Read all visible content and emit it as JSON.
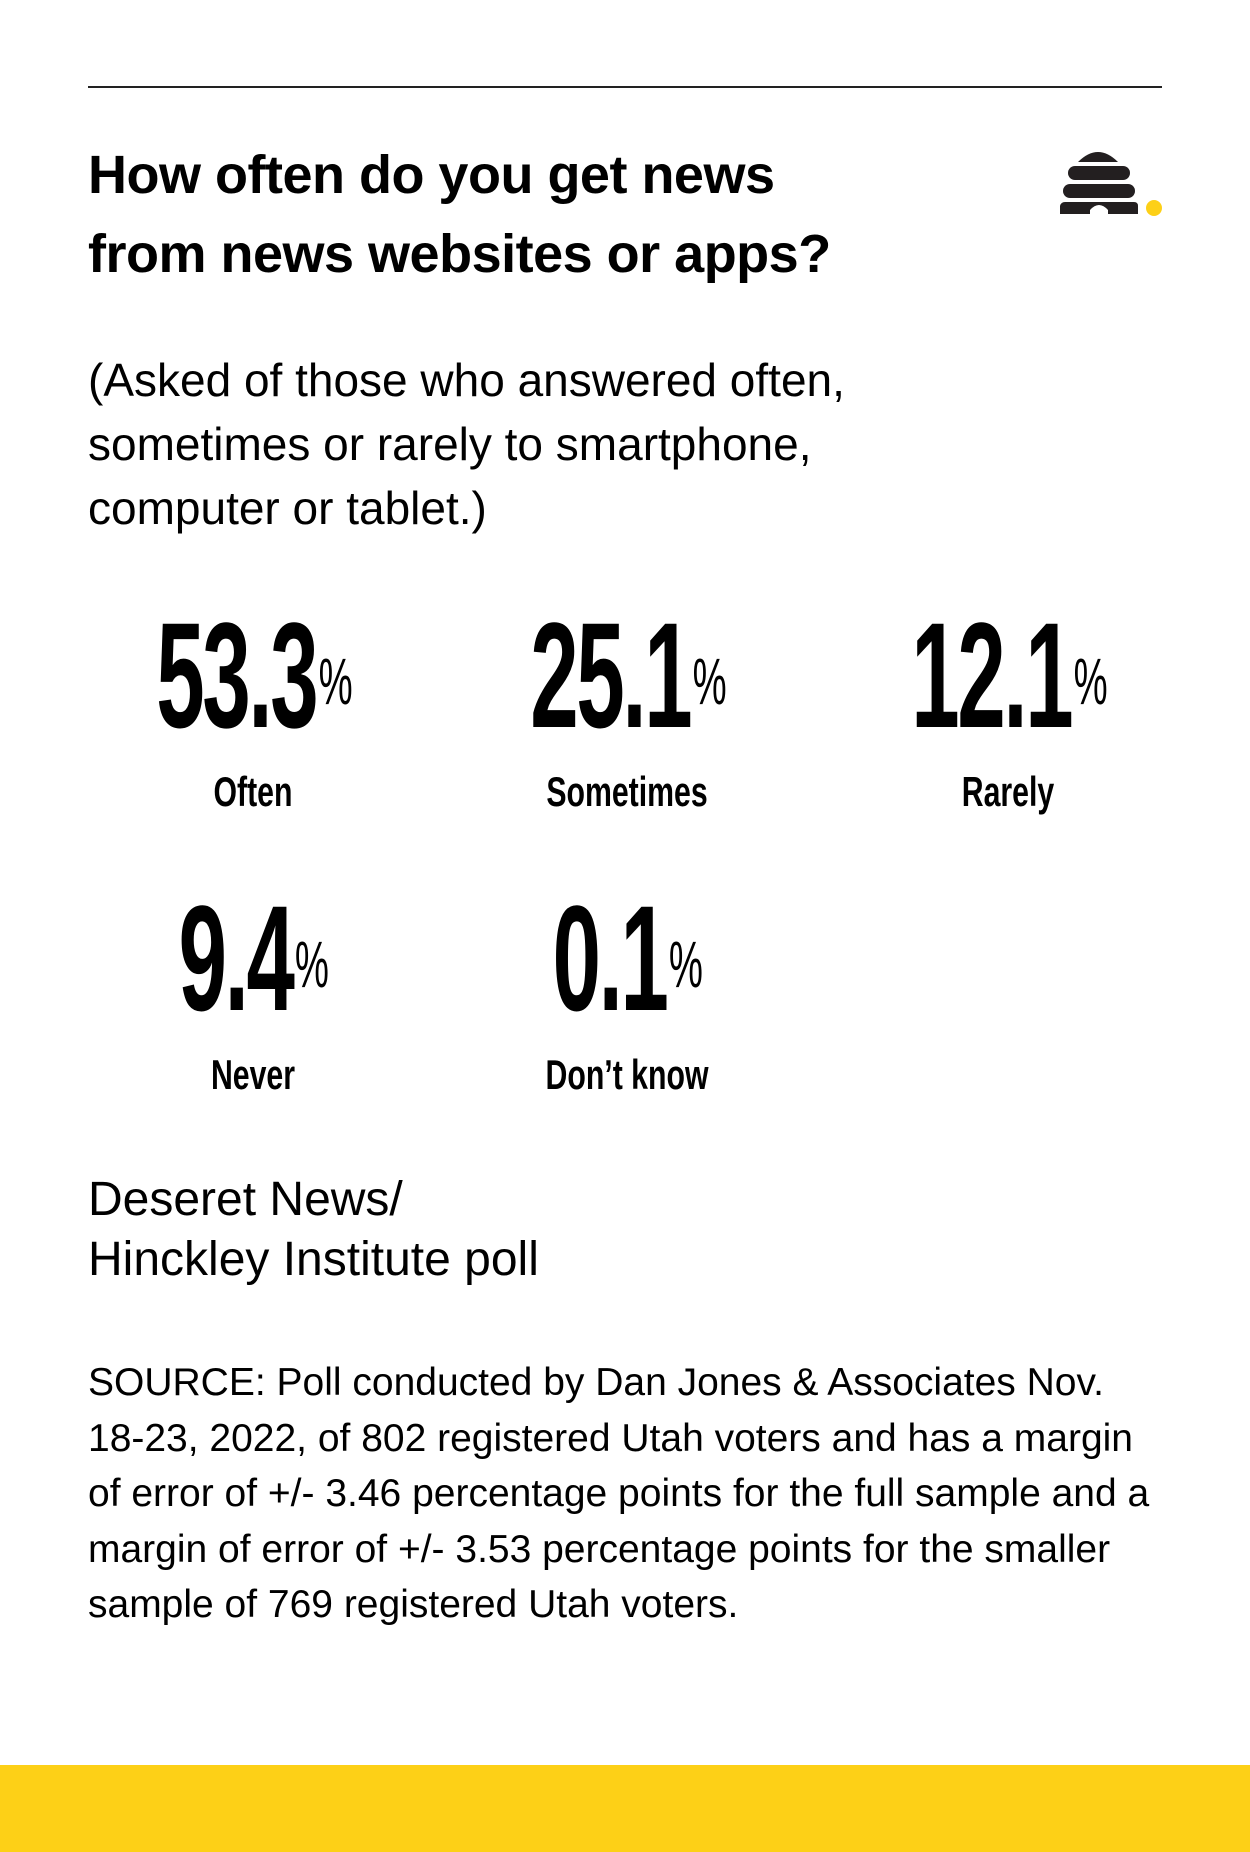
{
  "header": {
    "title_line1": "How often do you get news",
    "title_line2": "from news websites or apps?",
    "subtitle_line1": "(Asked of those who answered often,",
    "subtitle_line2": "sometimes or rarely to smartphone,",
    "subtitle_line3": "computer or tablet.)",
    "logo_icon": "beehive-icon"
  },
  "stats": [
    {
      "value": "53.3",
      "unit": "%",
      "label": "Often"
    },
    {
      "value": "25.1",
      "unit": "%",
      "label": "Sometimes"
    },
    {
      "value": "12.1",
      "unit": "%",
      "label": "Rarely"
    },
    {
      "value": "9.4",
      "unit": "%",
      "label": "Never"
    },
    {
      "value": "0.1",
      "unit": "%",
      "label": "Don’t know"
    }
  ],
  "footer": {
    "poll_line1": "Deseret News/",
    "poll_line2": "Hinckley Institute poll",
    "source": "SOURCE: Poll conducted by Dan Jones & Associates Nov. 18-23, 2022, of 802 registered Utah voters and has a margin of error of +/- 3.46 percentage points for the full sample and a margin of error of +/- 3.53 percentage points for the smaller sample of 769 registered Utah voters."
  },
  "colors": {
    "accent": "#FDD017",
    "text": "#000000",
    "logo": "#231F20"
  }
}
